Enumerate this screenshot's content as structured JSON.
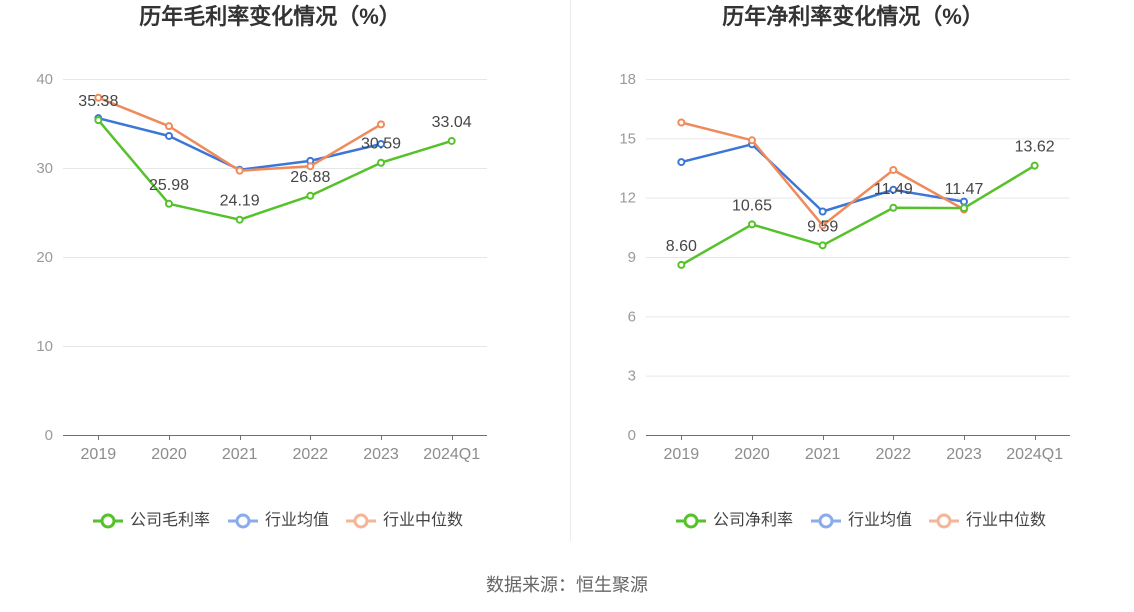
{
  "chart_data": [
    {
      "type": "line",
      "title": "历年毛利率变化情况（%）",
      "xlabel": "",
      "ylabel": "",
      "categories": [
        "2019",
        "2020",
        "2021",
        "2022",
        "2023",
        "2024Q1"
      ],
      "ylim": [
        0,
        40
      ],
      "yticks": [
        0,
        10,
        20,
        30,
        40
      ],
      "grid": true,
      "legend_position": "bottom",
      "series": [
        {
          "name": "公司毛利率",
          "color": "#56c22b",
          "legend_color": "#56c22b",
          "show_labels": true,
          "values": [
            35.38,
            25.98,
            24.19,
            26.88,
            30.59,
            33.04
          ]
        },
        {
          "name": "行业均值",
          "color": "#3c76d6",
          "legend_color": "#8aabec",
          "show_labels": false,
          "values": [
            35.6,
            33.6,
            29.8,
            30.8,
            32.7,
            null
          ]
        },
        {
          "name": "行业中位数",
          "color": "#ef8a5b",
          "legend_color": "#f5b698",
          "show_labels": false,
          "values": [
            37.9,
            34.7,
            29.7,
            30.2,
            34.9,
            null
          ]
        }
      ]
    },
    {
      "type": "line",
      "title": "历年净利率变化情况（%）",
      "xlabel": "",
      "ylabel": "",
      "categories": [
        "2019",
        "2020",
        "2021",
        "2022",
        "2023",
        "2024Q1"
      ],
      "ylim": [
        0,
        18
      ],
      "yticks": [
        0,
        3,
        6,
        9,
        12,
        15,
        18
      ],
      "grid": true,
      "legend_position": "bottom",
      "series": [
        {
          "name": "公司净利率",
          "color": "#56c22b",
          "legend_color": "#56c22b",
          "show_labels": true,
          "values": [
            8.6,
            10.65,
            9.59,
            11.49,
            11.47,
            13.62
          ]
        },
        {
          "name": "行业均值",
          "color": "#3c76d6",
          "legend_color": "#8aabec",
          "show_labels": false,
          "values": [
            13.8,
            14.7,
            11.3,
            12.4,
            11.8,
            null
          ]
        },
        {
          "name": "行业中位数",
          "color": "#ef8a5b",
          "legend_color": "#f5b698",
          "show_labels": false,
          "values": [
            15.8,
            14.9,
            10.6,
            13.4,
            11.4,
            null
          ]
        }
      ]
    }
  ],
  "footer": {
    "source": "数据来源：恒生聚源"
  }
}
